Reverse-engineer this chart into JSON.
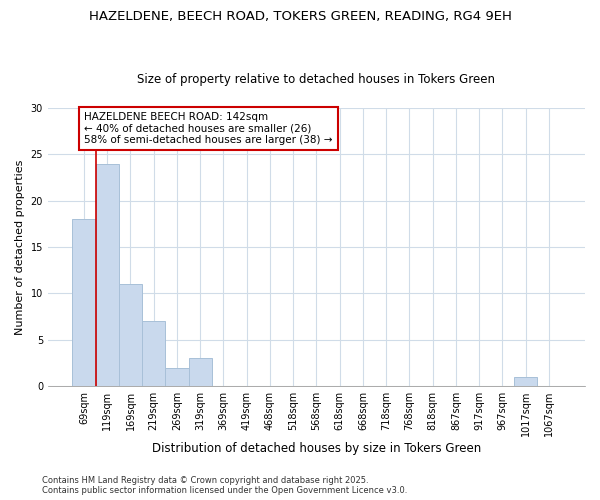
{
  "title": "HAZELDENE, BEECH ROAD, TOKERS GREEN, READING, RG4 9EH",
  "subtitle": "Size of property relative to detached houses in Tokers Green",
  "xlabel": "Distribution of detached houses by size in Tokers Green",
  "ylabel": "Number of detached properties",
  "bar_labels": [
    "69sqm",
    "119sqm",
    "169sqm",
    "219sqm",
    "269sqm",
    "319sqm",
    "369sqm",
    "419sqm",
    "468sqm",
    "518sqm",
    "568sqm",
    "618sqm",
    "668sqm",
    "718sqm",
    "768sqm",
    "818sqm",
    "867sqm",
    "917sqm",
    "967sqm",
    "1017sqm",
    "1067sqm"
  ],
  "bar_values": [
    18,
    24,
    11,
    7,
    2,
    3,
    0,
    0,
    0,
    0,
    0,
    0,
    0,
    0,
    0,
    0,
    0,
    0,
    0,
    1,
    0
  ],
  "bar_color": "#c9d9ed",
  "bar_edge_color": "#a8c0d8",
  "red_line_x": 0.5,
  "ylim": [
    0,
    30
  ],
  "annotation_text": "HAZELDENE BEECH ROAD: 142sqm\n← 40% of detached houses are smaller (26)\n58% of semi-detached houses are larger (38) →",
  "annotation_box_color": "white",
  "annotation_box_edge": "#cc0000",
  "footer": "Contains HM Land Registry data © Crown copyright and database right 2025.\nContains public sector information licensed under the Open Government Licence v3.0.",
  "title_fontsize": 9.5,
  "subtitle_fontsize": 8.5,
  "tick_fontsize": 7,
  "ylabel_fontsize": 8,
  "xlabel_fontsize": 8.5,
  "annotation_fontsize": 7.5,
  "footer_fontsize": 6,
  "background_color": "#ffffff",
  "grid_color": "#d0dce8"
}
